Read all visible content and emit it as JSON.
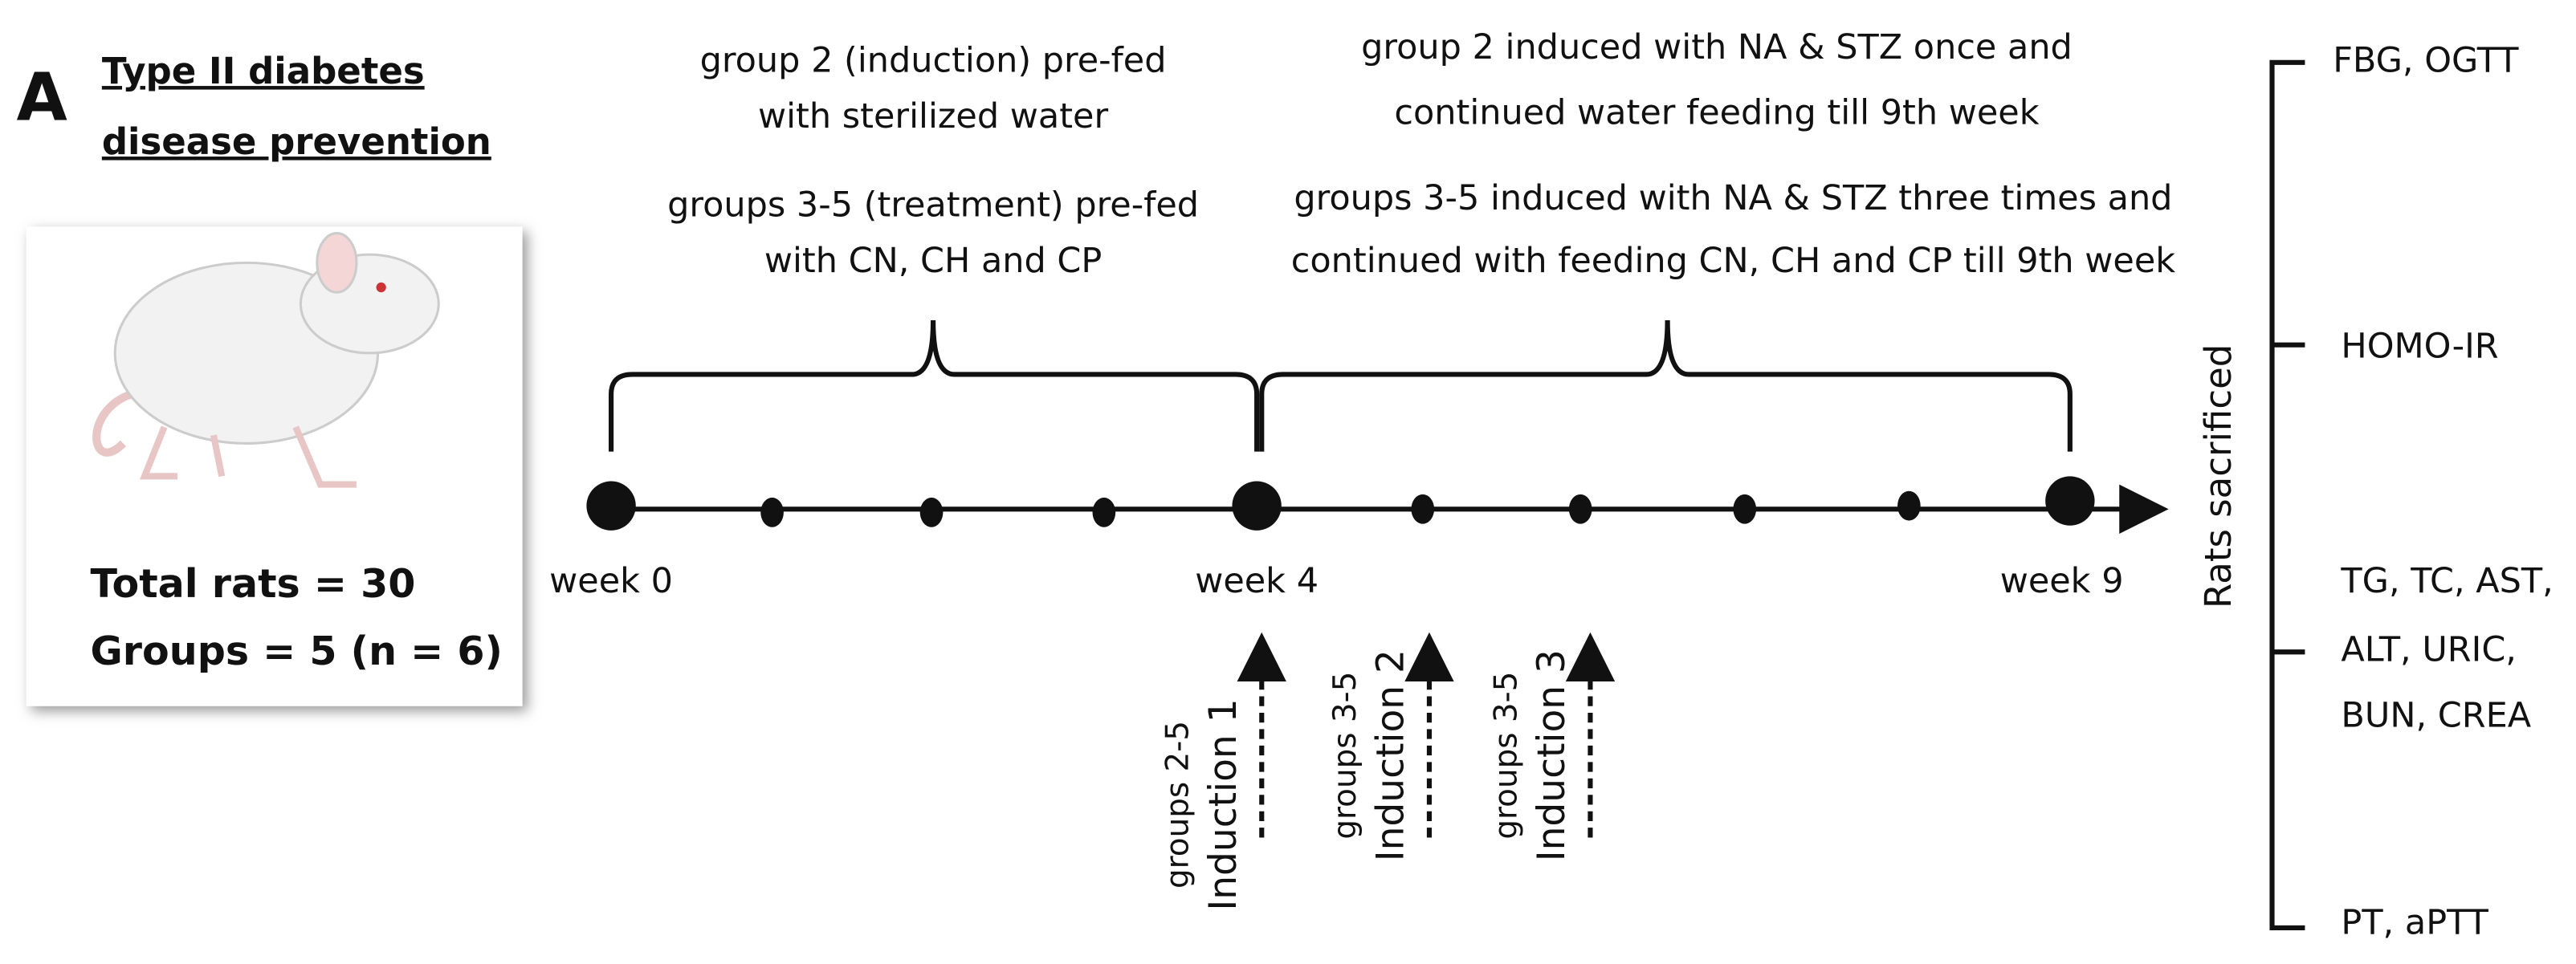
{
  "panel_label": "A",
  "title": [
    "Type II diabetes",
    "disease prevention"
  ],
  "summary": [
    "Total rats = 30",
    "Groups =  5 (n = 6)"
  ],
  "phase_1": {
    "group_2": [
      "group  2 (induction) pre-fed",
      "with sterilized water"
    ],
    "groups_3_5": [
      "groups 3-5 (treatment) pre-fed",
      "with CN, CH and CP"
    ]
  },
  "phase_2": {
    "group_2": [
      "group 2 induced with NA & STZ once and",
      "continued water feeding till 9th week"
    ],
    "groups_3_5": [
      "groups 3-5 induced with NA & STZ three times and",
      "continued with feeding CN, CH and CP till 9th week"
    ]
  },
  "timeline": [
    "week 0",
    "week 4",
    "week 9"
  ],
  "inductions": [
    {
      "groups": "groups 2-5",
      "label": "Induction 1"
    },
    {
      "groups": "groups 3-5",
      "label": "Induction 2"
    },
    {
      "groups": "groups 3-5",
      "label": "Induction 3"
    }
  ],
  "sacrifice": "Rats sacrificed",
  "measurements": [
    [
      "FBG, OGTT"
    ],
    [
      "HOMO-IR"
    ],
    [
      "TG, TC, AST,",
      "ALT, URIC,",
      "BUN, CREA"
    ],
    [
      "PT, aPTT"
    ]
  ]
}
